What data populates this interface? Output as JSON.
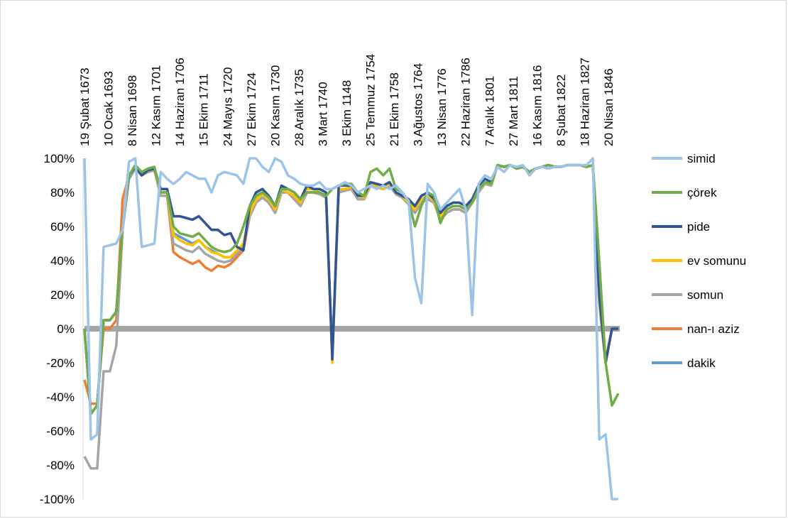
{
  "chart_data": {
    "type": "line",
    "title": "",
    "xlabel": "",
    "ylabel": "",
    "ylim": [
      -100,
      100
    ],
    "y_ticks": [
      "100%",
      "80%",
      "60%",
      "40%",
      "20%",
      "0%",
      "-20%",
      "-40%",
      "-60%",
      "-80%",
      "-100%"
    ],
    "x_tick_labels": [
      "19 Şubat 1673",
      "10 Ocak 1693",
      "8 Nisan 1698",
      "12 Kasım 1701",
      "14 Haziran 1706",
      "15 Ekim 1711",
      "24 Mayıs 1720",
      "27 Ekim 1724",
      "20 Kasım 1730",
      "28 Aralık 1735",
      "3 Mart 1740",
      "3 Ekim 1148",
      "25 Temmuz 1754",
      "21 Ekim 1758",
      "3 Ağustos 1764",
      "13 Nisan 1776",
      "22 Haziran 1786",
      "7 Aralık 1801",
      "27 Mart 1811",
      "16 Kasım 1816",
      "8 Şubat 1822",
      "18 Haziran 1827",
      "20 Nisan 1846"
    ],
    "grid": false,
    "legend_position": "right",
    "series": [
      {
        "name": "simid",
        "color": "#9dc3e6",
        "values": [
          100,
          -65,
          -62,
          48,
          49,
          50,
          58,
          98,
          100,
          48,
          49,
          50,
          92,
          88,
          85,
          88,
          92,
          90,
          88,
          88,
          80,
          90,
          92,
          91,
          90,
          85,
          100,
          100,
          95,
          92,
          100,
          98,
          90,
          88,
          85,
          84,
          84,
          86,
          82,
          82,
          84,
          86,
          84,
          80,
          82,
          84,
          82,
          84,
          82,
          84,
          80,
          75,
          30,
          15,
          85,
          80,
          70,
          74,
          78,
          82,
          70,
          8,
          85,
          90,
          88,
          95,
          92,
          96,
          95,
          96,
          90,
          94,
          95,
          94,
          95,
          95,
          96,
          96,
          96,
          96,
          100,
          -65,
          -62,
          -100,
          -100
        ]
      },
      {
        "name": "çörek",
        "color": "#70ad47",
        "values": [
          0,
          -50,
          -45,
          5,
          5,
          10,
          60,
          90,
          96,
          92,
          94,
          95,
          80,
          80,
          60,
          56,
          55,
          54,
          56,
          52,
          48,
          46,
          45,
          46,
          50,
          60,
          72,
          78,
          80,
          77,
          72,
          82,
          82,
          80,
          76,
          80,
          80,
          80,
          78,
          82,
          84,
          85,
          85,
          80,
          78,
          92,
          94,
          90,
          94,
          82,
          80,
          75,
          60,
          72,
          80,
          78,
          62,
          70,
          72,
          72,
          70,
          74,
          82,
          86,
          85,
          96,
          95,
          96,
          94,
          95,
          92,
          94,
          95,
          96,
          95,
          95,
          96,
          96,
          96,
          95,
          96,
          40,
          -20,
          -45,
          -38
        ]
      },
      {
        "name": "pide",
        "color": "#2f5597",
        "values": [
          0,
          -50,
          -45,
          5,
          5,
          10,
          60,
          90,
          95,
          90,
          93,
          94,
          82,
          82,
          66,
          66,
          65,
          64,
          66,
          62,
          58,
          58,
          55,
          56,
          48,
          46,
          72,
          80,
          82,
          78,
          72,
          84,
          82,
          80,
          76,
          84,
          82,
          82,
          80,
          -18,
          84,
          84,
          84,
          78,
          78,
          86,
          85,
          84,
          86,
          80,
          78,
          76,
          72,
          78,
          80,
          76,
          68,
          72,
          74,
          74,
          72,
          76,
          84,
          88,
          86,
          96,
          95,
          96,
          94,
          95,
          92,
          94,
          95,
          96,
          95,
          95,
          96,
          96,
          96,
          95,
          96,
          20,
          -20,
          0,
          0
        ]
      },
      {
        "name": "ev somunu",
        "color": "#ffc000",
        "values": [
          0,
          -50,
          -45,
          5,
          5,
          10,
          58,
          90,
          95,
          90,
          93,
          94,
          80,
          80,
          55,
          52,
          50,
          49,
          52,
          48,
          45,
          44,
          42,
          42,
          46,
          50,
          68,
          76,
          79,
          76,
          70,
          82,
          80,
          78,
          74,
          82,
          82,
          80,
          78,
          -20,
          82,
          82,
          83,
          78,
          77,
          85,
          84,
          82,
          85,
          80,
          78,
          74,
          70,
          76,
          78,
          75,
          66,
          70,
          72,
          72,
          70,
          75,
          82,
          86,
          85,
          96,
          95,
          96,
          94,
          95,
          92,
          94,
          95,
          96,
          95,
          95,
          96,
          96,
          96,
          95,
          96,
          18,
          -18,
          0,
          0
        ]
      },
      {
        "name": "somun",
        "color": "#a5a5a5",
        "values": [
          -75,
          -82,
          -82,
          -25,
          -25,
          -10,
          58,
          89,
          94,
          90,
          92,
          93,
          78,
          78,
          50,
          48,
          46,
          45,
          48,
          44,
          42,
          40,
          39,
          40,
          44,
          48,
          66,
          74,
          77,
          74,
          68,
          80,
          80,
          76,
          72,
          80,
          80,
          79,
          77,
          -15,
          80,
          81,
          82,
          76,
          76,
          84,
          83,
          82,
          84,
          79,
          77,
          73,
          68,
          74,
          76,
          74,
          64,
          68,
          70,
          70,
          68,
          74,
          80,
          85,
          84,
          96,
          95,
          96,
          94,
          95,
          92,
          94,
          95,
          96,
          95,
          95,
          96,
          96,
          96,
          95,
          96,
          15,
          -20,
          0,
          0
        ]
      },
      {
        "name": "nan-ı aziz",
        "color": "#ed7d31",
        "values": [
          -30,
          -44,
          -44,
          0,
          0,
          5,
          76,
          90,
          94,
          90,
          92,
          93,
          78,
          78,
          45,
          42,
          40,
          38,
          40,
          36,
          34,
          37,
          36,
          38,
          42,
          46,
          66,
          74,
          77,
          74,
          68,
          80,
          80,
          76,
          72,
          80,
          80,
          79,
          77,
          -15,
          80,
          81,
          82,
          76,
          76,
          84,
          83,
          82,
          84,
          79,
          77,
          73,
          68,
          74,
          76,
          74,
          64,
          68,
          70,
          70,
          68,
          74,
          80,
          85,
          84,
          96,
          95,
          96,
          94,
          95,
          92,
          94,
          95,
          96,
          95,
          95,
          96,
          96,
          96,
          95,
          96,
          15,
          -20,
          0,
          0
        ]
      },
      {
        "name": "dakik",
        "color": "#5b9bd5",
        "values": [
          0,
          -50,
          -45,
          5,
          5,
          10,
          58,
          88,
          94,
          90,
          92,
          93,
          80,
          80,
          56,
          54,
          52,
          50,
          52,
          48,
          46,
          44,
          42,
          42,
          44,
          48,
          70,
          78,
          80,
          77,
          70,
          82,
          80,
          78,
          74,
          82,
          82,
          80,
          78,
          -15,
          82,
          82,
          83,
          78,
          77,
          85,
          84,
          82,
          85,
          80,
          78,
          74,
          70,
          76,
          78,
          75,
          66,
          70,
          72,
          72,
          70,
          75,
          82,
          86,
          85,
          96,
          95,
          96,
          94,
          95,
          92,
          94,
          95,
          96,
          95,
          95,
          96,
          96,
          96,
          95,
          96,
          18,
          -18,
          0,
          0
        ]
      }
    ],
    "zero_line": {
      "color": "#a5a5a5"
    }
  }
}
